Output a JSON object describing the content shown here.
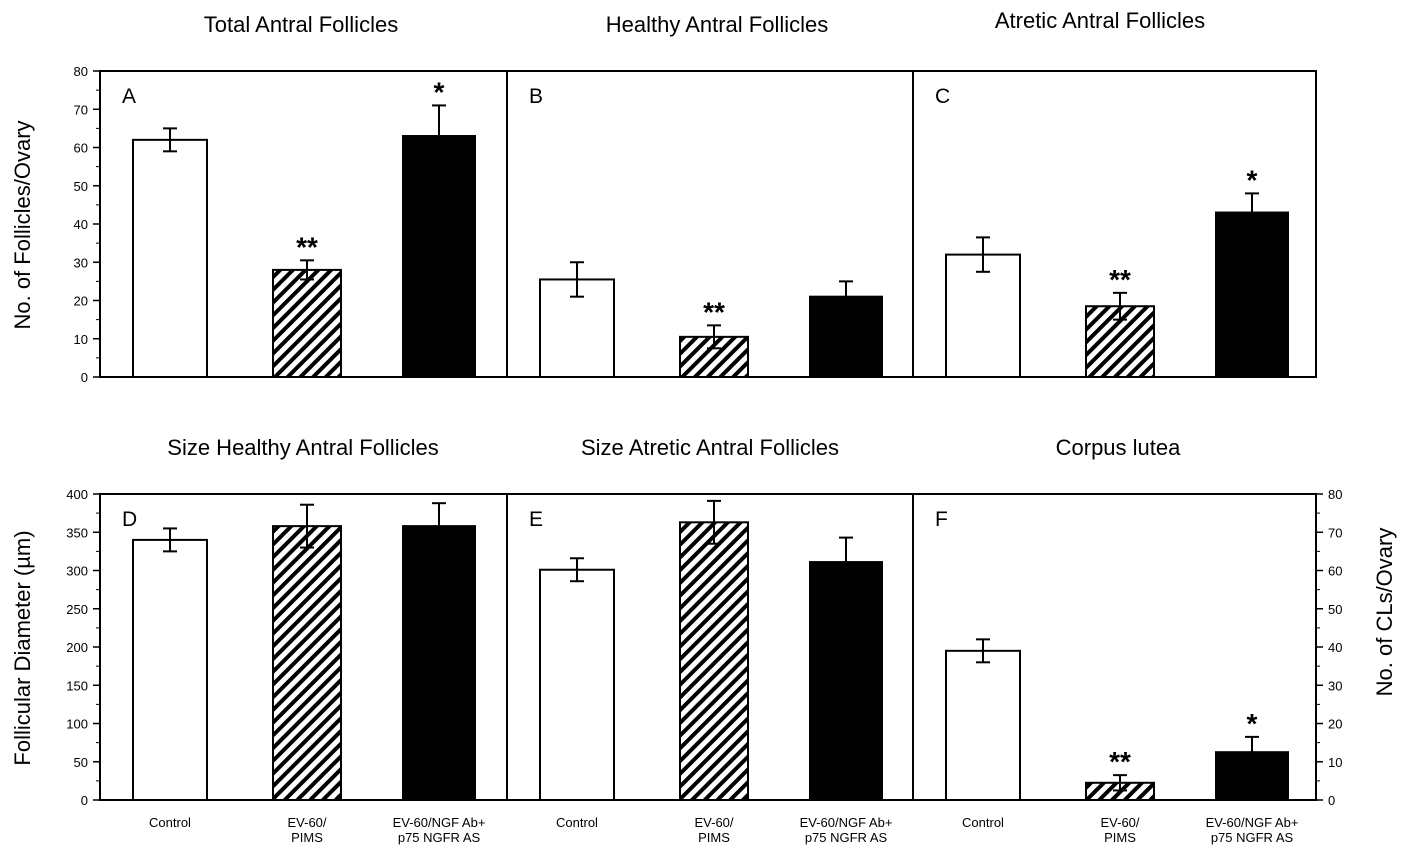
{
  "colors": {
    "control": "#ffffff",
    "ev60_pims": "hatched",
    "ev60_ngf": "#000000",
    "axis": "#000000"
  },
  "chart_data": [
    {
      "type": "bar",
      "panel": "A",
      "title": "Total Antral Follicles",
      "ylabel": "No. of Follicles/Ovary",
      "ylim": [
        0,
        80
      ],
      "yticks": [
        "0",
        "10",
        "20",
        "30",
        "40",
        "50",
        "60",
        "70",
        "80"
      ],
      "categories": [
        "",
        "",
        ""
      ],
      "values": [
        62,
        28,
        63
      ],
      "errors": [
        3,
        2.5,
        8
      ],
      "significance": [
        "",
        "**",
        "*"
      ],
      "fills": [
        "white",
        "hatch",
        "black"
      ]
    },
    {
      "type": "bar",
      "panel": "B",
      "title": "Healthy Antral Follicles",
      "ylim": [
        0,
        80
      ],
      "categories": [
        "",
        "",
        ""
      ],
      "values": [
        25.5,
        10.5,
        21
      ],
      "errors": [
        4.5,
        3,
        4
      ],
      "significance": [
        "",
        "**",
        ""
      ],
      "fills": [
        "white",
        "hatch",
        "black"
      ]
    },
    {
      "type": "bar",
      "panel": "C",
      "title": "Atretic Antral Follicles",
      "ylim": [
        0,
        80
      ],
      "categories": [
        "",
        "",
        ""
      ],
      "values": [
        32,
        18.5,
        43
      ],
      "errors": [
        4.5,
        3.5,
        5
      ],
      "significance": [
        "",
        "**",
        "*"
      ],
      "fills": [
        "white",
        "hatch",
        "black"
      ]
    },
    {
      "type": "bar",
      "panel": "D",
      "title": "Size Healthy Antral Follicles",
      "ylabel": "Follicular Diameter (µm)",
      "ylim": [
        0,
        400
      ],
      "yticks": [
        "0",
        "50",
        "100",
        "150",
        "200",
        "250",
        "300",
        "350",
        "400"
      ],
      "categories": [
        "Control",
        "EV-60/\nPIMS",
        "EV-60/NGF Ab+\np75 NGFR AS"
      ],
      "values": [
        340,
        358,
        358
      ],
      "errors": [
        15,
        28,
        30
      ],
      "significance": [
        "",
        "",
        ""
      ],
      "fills": [
        "white",
        "hatch",
        "black"
      ]
    },
    {
      "type": "bar",
      "panel": "E",
      "title": "Size Atretic Antral Follicles",
      "ylim": [
        0,
        400
      ],
      "categories": [
        "Control",
        "EV-60/\nPIMS",
        "EV-60/NGF Ab+\np75 NGFR AS"
      ],
      "values": [
        301,
        363,
        311
      ],
      "errors": [
        15,
        28,
        32
      ],
      "significance": [
        "",
        "",
        ""
      ],
      "fills": [
        "white",
        "hatch",
        "black"
      ]
    },
    {
      "type": "bar",
      "panel": "F",
      "title": "Corpus lutea",
      "ylabel": "No. of CLs/Ovary",
      "ylim": [
        0,
        80
      ],
      "yticks": [
        "0",
        "10",
        "20",
        "30",
        "40",
        "50",
        "60",
        "70",
        "80"
      ],
      "categories": [
        "Control",
        "EV-60/\nPIMS",
        "EV-60/NGF Ab+\np75 NGFR AS"
      ],
      "values": [
        39,
        4.5,
        12.5
      ],
      "errors": [
        3,
        2,
        4
      ],
      "significance": [
        "",
        "**",
        "*"
      ],
      "fills": [
        "white",
        "hatch",
        "black"
      ]
    }
  ]
}
